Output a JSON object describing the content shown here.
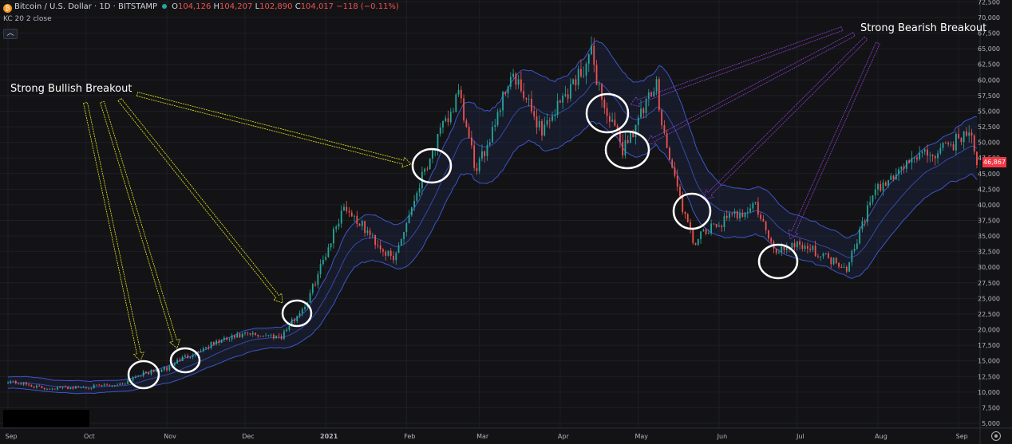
{
  "header": {
    "symbol": "Bitcoin / U.S. Dollar · 1D · BITSTAMP",
    "logo": "₿",
    "open_label": "O",
    "open": "104,126",
    "high_label": "H",
    "high": "104,207",
    "low_label": "L",
    "low": "102,890",
    "close_label": "C",
    "close": "104,017",
    "change": "−118 (−0.11%)"
  },
  "indicator": {
    "label": "KC 20 2 close"
  },
  "collapse_icon": "chevron-up-icon",
  "price_tag": "46,867",
  "annotations": {
    "bullish": "Strong Bullish Breakout",
    "bearish": "Strong Bearish Breakout"
  },
  "colors": {
    "background": "#131316",
    "up": "#26a69a",
    "down": "#ef5350",
    "channel": "#3d56c9",
    "bullish_arrow": "#e6e619",
    "bearish_arrow": "#8a3fc7",
    "circle": "#ffffff"
  },
  "chart_data": {
    "type": "candlestick",
    "title": "",
    "x_ticks": [
      "Sep",
      "Oct",
      "Nov",
      "Dec",
      "2021",
      "Feb",
      "Mar",
      "Apr",
      "May",
      "Jun",
      "Jul",
      "Aug",
      "Sep"
    ],
    "y_ticks": [
      "72,500",
      "70,000",
      "67,500",
      "65,000",
      "62,500",
      "60,000",
      "57,500",
      "55,000",
      "52,500",
      "50,000",
      "47,500",
      "45,000",
      "42,500",
      "40,000",
      "37,500",
      "35,000",
      "32,500",
      "30,000",
      "27,500",
      "25,000",
      "22,500",
      "20,000",
      "17,500",
      "15,000",
      "12,500",
      "10,000",
      "7,500",
      "5,000"
    ],
    "ylim": [
      4000,
      73500
    ],
    "price_path": [
      [
        "2020-09-01",
        11800
      ],
      [
        "2020-09-15",
        10600
      ],
      [
        "2020-10-01",
        10800
      ],
      [
        "2020-10-15",
        11300
      ],
      [
        "2020-10-21",
        12800
      ],
      [
        "2020-11-01",
        13700
      ],
      [
        "2020-11-05",
        15000
      ],
      [
        "2020-11-20",
        18000
      ],
      [
        "2020-12-01",
        19200
      ],
      [
        "2020-12-15",
        19000
      ],
      [
        "2020-12-25",
        24500
      ],
      [
        "2021-01-08",
        40000
      ],
      [
        "2021-01-15",
        36500
      ],
      [
        "2021-01-27",
        31000
      ],
      [
        "2021-02-08",
        46000
      ],
      [
        "2021-02-21",
        57500
      ],
      [
        "2021-02-28",
        45000
      ],
      [
        "2021-03-13",
        61000
      ],
      [
        "2021-03-25",
        52000
      ],
      [
        "2021-04-13",
        64000
      ],
      [
        "2021-04-18",
        55500
      ],
      [
        "2021-04-25",
        49000
      ],
      [
        "2021-05-08",
        59000
      ],
      [
        "2021-05-12",
        49000
      ],
      [
        "2021-05-19",
        38000
      ],
      [
        "2021-05-22",
        34000
      ],
      [
        "2021-06-01",
        37000
      ],
      [
        "2021-06-15",
        40000
      ],
      [
        "2021-06-22",
        32500
      ],
      [
        "2021-07-01",
        34000
      ],
      [
        "2021-07-20",
        30000
      ],
      [
        "2021-07-30",
        41500
      ],
      [
        "2021-08-14",
        47500
      ],
      [
        "2021-08-25",
        48500
      ],
      [
        "2021-09-06",
        52000
      ],
      [
        "2021-09-08",
        46800
      ]
    ],
    "series": [
      {
        "name": "KC 20 2 close",
        "type": "channel"
      }
    ],
    "annotations": [
      {
        "text": "Strong Bullish Breakout",
        "targets": [
          "2020-10-21",
          "2020-11-06",
          "2020-12-20",
          "2021-02-08"
        ]
      },
      {
        "text": "Strong Bearish Breakout",
        "targets": [
          "2021-04-18",
          "2021-04-25",
          "2021-05-19",
          "2021-06-22"
        ]
      }
    ]
  }
}
